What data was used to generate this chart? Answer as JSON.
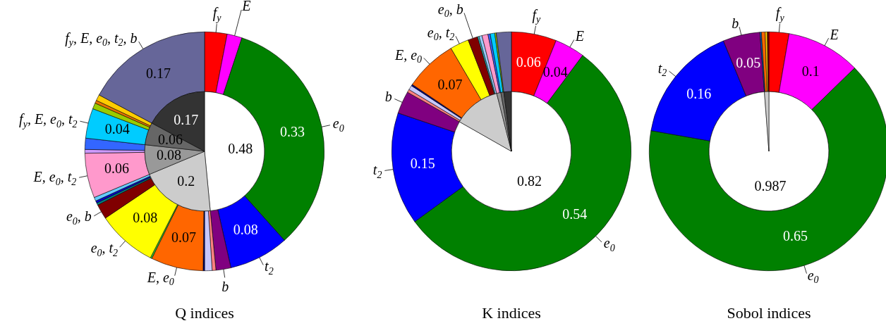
{
  "chart_data": [
    {
      "type": "donut",
      "title": "Q indices",
      "categories": [
        "f$_{y}$",
        "E",
        "e$_{0}$",
        "t$_{2}$",
        "b",
        null,
        null,
        null,
        "E, e$_{0}$",
        null,
        "e$_{0}$, t$_{2}$",
        "e$_{0}$, b",
        null,
        null,
        null,
        "E, e$_{0}$, t$_{2}$",
        null,
        null,
        "f$_{y}$, E, e$_{0}$, t$_{2}$",
        null,
        null,
        null,
        "f$_{y}$, E, e$_{0}$, t$_{2}$, b"
      ],
      "values": [
        0.03,
        0.02,
        0.33,
        0.08,
        0.02,
        0.005,
        0.01,
        0.002,
        0.07,
        0.002,
        0.08,
        0.02,
        0.003,
        0.003,
        0.005,
        0.06,
        0.005,
        0.015,
        0.04,
        0.008,
        0.004,
        0.008,
        0.17
      ],
      "colors": [
        "#ff0000",
        "#ff00ff",
        "#008000",
        "#0000ff",
        "#800080",
        "#ff8080",
        "#c8c8ff",
        "#000080",
        "#ff6600",
        "#33cc33",
        "#ffff00",
        "#800000",
        "#008080",
        "#0000cc",
        "#66ccff",
        "#ff99cc",
        "#cc99ff",
        "#3366ff",
        "#00ccff",
        "#99cc00",
        "#e67300",
        "#ffcc00",
        "#666699"
      ],
      "value_labels": [
        null,
        null,
        "0.33",
        "0.08",
        null,
        null,
        null,
        null,
        "0.07",
        null,
        "0.08",
        null,
        null,
        null,
        null,
        "0.06",
        null,
        null,
        "0.04",
        null,
        null,
        null,
        "0.17"
      ]
    },
    {
      "type": "pie",
      "categories": [
        null,
        null,
        null,
        null,
        null
      ],
      "values": [
        0.48,
        0.2,
        0.08,
        0.06,
        0.17
      ],
      "colors": [
        "#ffffff",
        "#cccccc",
        "#999999",
        "#666666",
        "#333333"
      ],
      "value_labels": [
        "0.48",
        "0.2",
        "0.08",
        "0.06",
        "0.17"
      ]
    },
    {
      "type": "donut",
      "title": "K indices",
      "categories": [
        "f$_{y}$",
        "E",
        "e$_{0}$",
        "t$_{2}$",
        "b",
        null,
        null,
        null,
        "E, e$_{0}$",
        "e$_{0}$, t$_{2}$",
        "e$_{0}$, b",
        null,
        null,
        null,
        null,
        null,
        null,
        null
      ],
      "values": [
        0.06,
        0.04,
        0.54,
        0.15,
        0.03,
        0.004,
        0.006,
        0.002,
        0.07,
        0.025,
        0.013,
        0.002,
        0.004,
        0.008,
        0.003,
        0.006,
        0.002,
        0.02
      ],
      "colors": [
        "#ff0000",
        "#ff00ff",
        "#008000",
        "#0000ff",
        "#800080",
        "#ff8080",
        "#c8c8ff",
        "#000080",
        "#ff6600",
        "#ffff00",
        "#800000",
        "#33cccc",
        "#99ccff",
        "#ff99cc",
        "#3366ff",
        "#00ccff",
        "#99cc00",
        "#666699"
      ],
      "value_labels": [
        "0.06",
        "0.04",
        "0.54",
        "0.15",
        null,
        null,
        null,
        null,
        "0.07",
        null,
        null,
        null,
        null,
        null,
        null,
        null,
        null,
        null
      ]
    },
    {
      "type": "pie",
      "categories": [
        null,
        null,
        null,
        null,
        null
      ],
      "values": [
        0.82,
        0.126,
        0.011,
        0.008,
        0.02
      ],
      "colors": [
        "#ffffff",
        "#cccccc",
        "#999999",
        "#666666",
        "#333333"
      ],
      "value_labels": [
        "0.82",
        null,
        null,
        null,
        null
      ]
    },
    {
      "type": "donut",
      "title": "Sobol indices",
      "categories": [
        "f$_{y}$",
        "E",
        "e$_{0}$",
        "t$_{2}$",
        "b",
        null,
        null,
        null,
        null
      ],
      "values": [
        0.027,
        0.1,
        0.65,
        0.16,
        0.05,
        0.002,
        0.005,
        0.003,
        0.002
      ],
      "colors": [
        "#ff0000",
        "#ff00ff",
        "#008000",
        "#0000ff",
        "#800080",
        "#0066cc",
        "#ff6600",
        "#ffcc00",
        "#800000"
      ],
      "value_labels": [
        null,
        "0.1",
        "0.65",
        "0.16",
        "0.05",
        null,
        null,
        null,
        null
      ]
    },
    {
      "type": "pie",
      "categories": [
        null,
        null
      ],
      "values": [
        0.987,
        0.012
      ],
      "colors": [
        "#ffffff",
        "#cccccc"
      ],
      "value_labels": [
        "0.987",
        null
      ]
    }
  ]
}
